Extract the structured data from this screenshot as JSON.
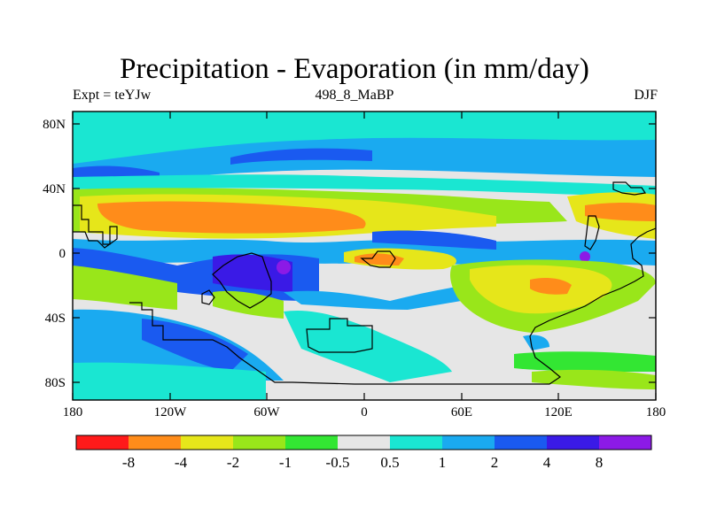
{
  "title": "Precipitation - Evaporation (in mm/day)",
  "subtitle_left": "Expt = teYJw",
  "subtitle_center": "498_8_MaBP",
  "subtitle_right": "DJF",
  "lat_ticks": [
    "80N",
    "40N",
    "0",
    "40S",
    "80S"
  ],
  "lon_ticks": [
    "180",
    "120W",
    "60W",
    "0",
    "60E",
    "120E",
    "180"
  ],
  "colorbar": {
    "colors": [
      "#ff1a1a",
      "#ff8c1a",
      "#e6e61a",
      "#99e61a",
      "#33e633",
      "#e6e6e6",
      "#1ae6d2",
      "#1aaaf0",
      "#1a5af0",
      "#3a1ae6",
      "#8c1ae6"
    ],
    "labels": [
      "-8",
      "-4",
      "-2",
      "-1",
      "-0.5",
      "0.5",
      "1",
      "2",
      "4",
      "8"
    ]
  },
  "legend_colors": {
    "strong_deficit": "#ff8c1a",
    "deficit": "#e6e61a",
    "mild_deficit": "#99e61a",
    "near_zero": "#e6e6e6",
    "mild_surplus": "#1ae6d2",
    "surplus": "#1a5af0",
    "strong_surplus": "#3a1ae6"
  }
}
